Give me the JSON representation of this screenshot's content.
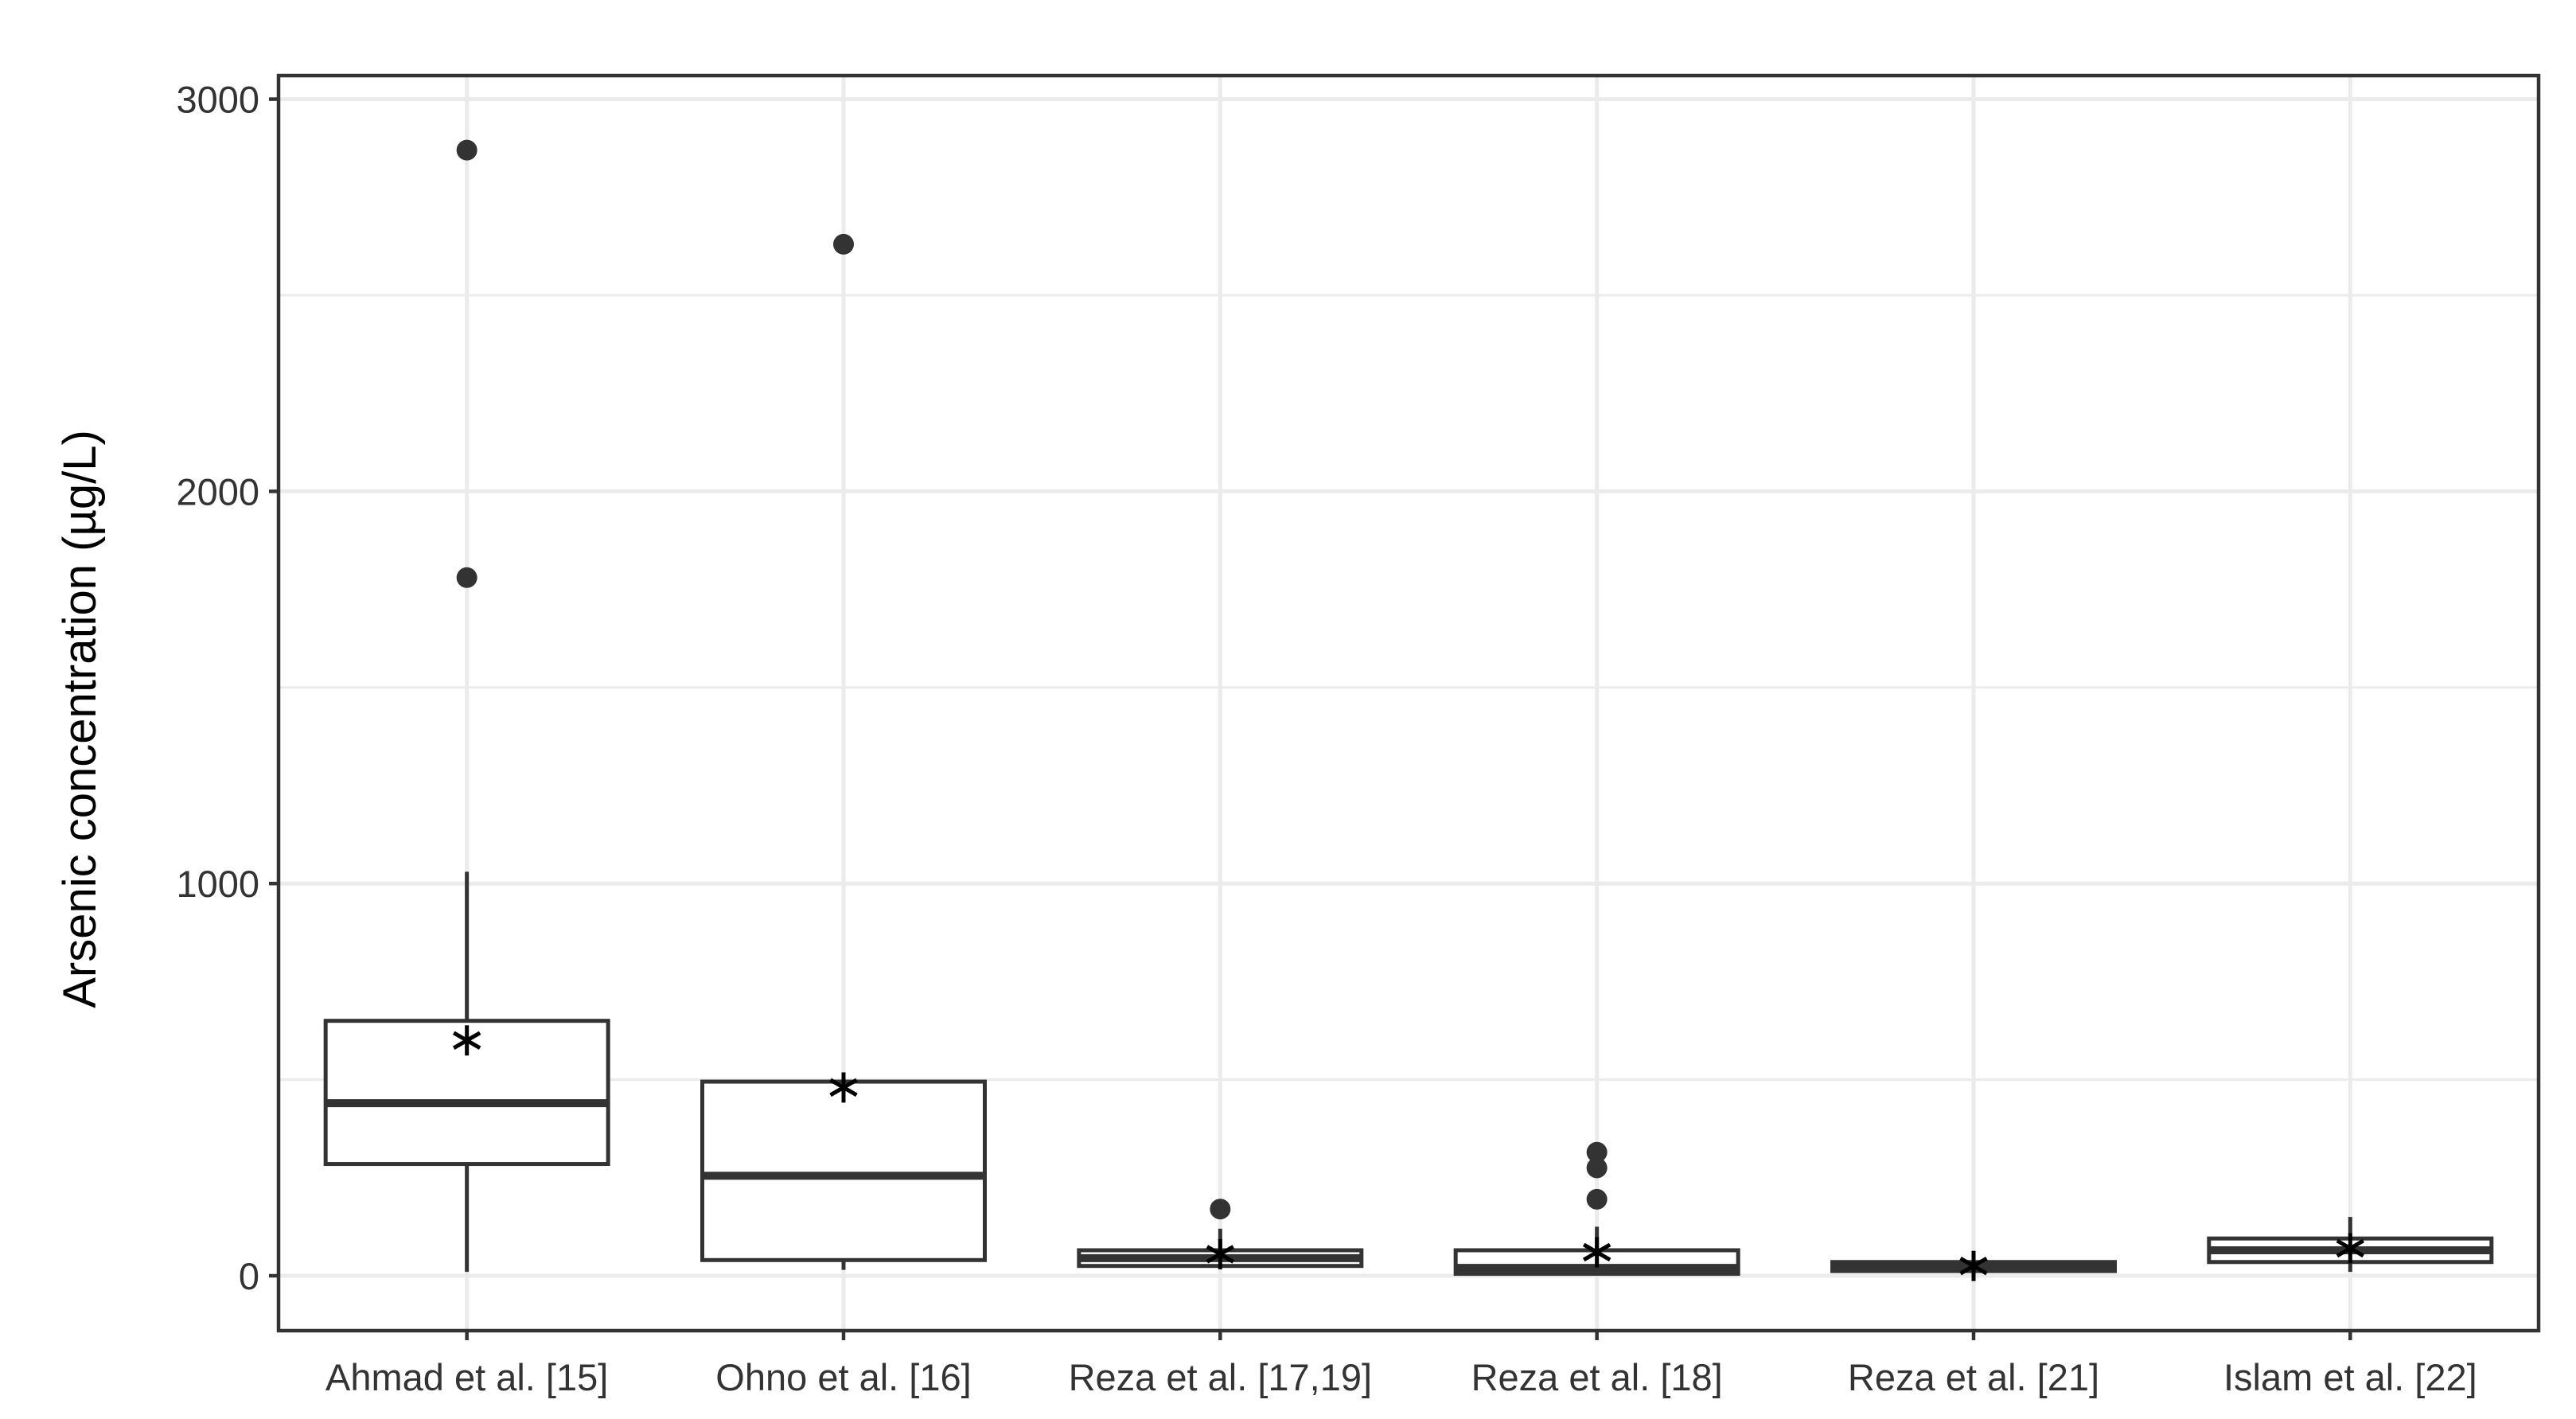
{
  "chart_data": {
    "type": "box",
    "title": "",
    "xlabel": "",
    "ylabel": "Arsenic concentration (µg/L)",
    "ylim": [
      -140,
      3060
    ],
    "yticks": [
      0,
      1000,
      2000,
      3000
    ],
    "grid": true,
    "legend": "none",
    "categories": [
      "Ahmad et al. [15]",
      "Ohno et al. [16]",
      "Reza et al. [17,19]",
      "Reza et al. [18]",
      "Reza et al. [21]",
      "Islam et al. [22]"
    ],
    "boxes": [
      {
        "category": "Ahmad et al. [15]",
        "whisker_low": 10,
        "q1": 285,
        "median": 440,
        "q3": 650,
        "whisker_high": 1030,
        "mean": 600,
        "outliers": [
          1780,
          2870
        ]
      },
      {
        "category": "Ohno et al. [16]",
        "whisker_low": 15,
        "q1": 40,
        "median": 255,
        "q3": 495,
        "whisker_high": 495,
        "mean": 480,
        "outliers": [
          2630
        ]
      },
      {
        "category": "Reza et al. [17,19]",
        "whisker_low": 20,
        "q1": 25,
        "median": 45,
        "q3": 65,
        "whisker_high": 120,
        "mean": 55,
        "outliers": [
          170
        ]
      },
      {
        "category": "Reza et al. [18]",
        "whisker_low": 3,
        "q1": 5,
        "median": 20,
        "q3": 65,
        "whisker_high": 125,
        "mean": 60,
        "outliers": [
          195,
          275,
          315
        ]
      },
      {
        "category": "Reza et al. [21]",
        "whisker_low": 8,
        "q1": 12,
        "median": 25,
        "q3": 35,
        "whisker_high": 40,
        "mean": 25,
        "outliers": []
      },
      {
        "category": "Islam et al. [22]",
        "whisker_low": 10,
        "q1": 35,
        "median": 65,
        "q3": 95,
        "whisker_high": 150,
        "mean": 70,
        "outliers": []
      }
    ],
    "colors": {
      "box_fill": "#ffffff",
      "stroke": "#333333",
      "grid": "#ebebeb",
      "panel_border": "#333333"
    }
  }
}
